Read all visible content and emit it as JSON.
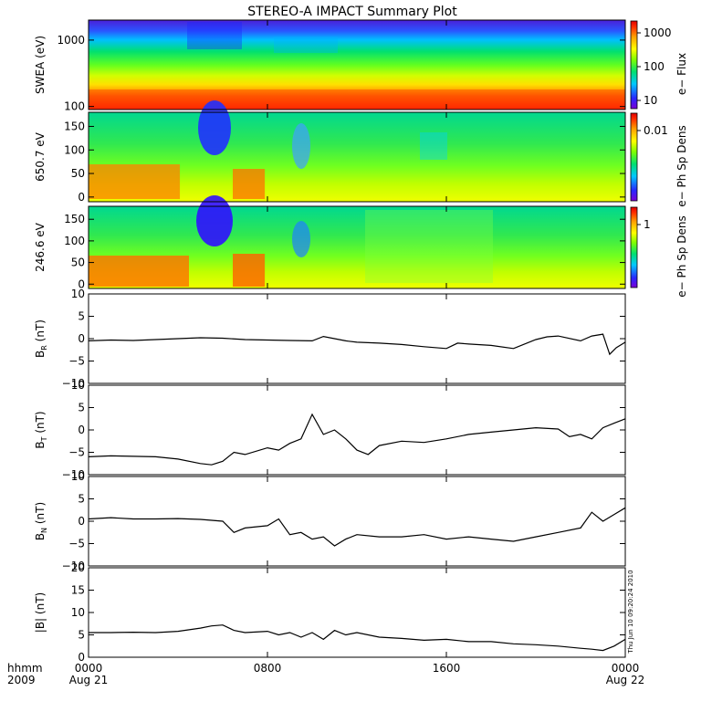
{
  "title": "STEREO-A IMPACT Summary Plot",
  "timestamp": "Thu Jun 10 09:20:24 2010",
  "colors": {
    "axis": "#000000",
    "trace": "#000000",
    "background": "#ffffff"
  },
  "colorbar_palette": [
    "#7b00d6",
    "#2828ff",
    "#00c8ff",
    "#00e070",
    "#80ff00",
    "#ffff00",
    "#ffa000",
    "#ff3000",
    "#e00000"
  ],
  "time_axis": {
    "range": [
      0,
      24
    ],
    "ticks": [
      0,
      8,
      16,
      24
    ],
    "time_labels": [
      "0000",
      "0800",
      "1600",
      "0000"
    ],
    "date_labels": [
      "Aug 21",
      "",
      "",
      "Aug 22"
    ],
    "row1_caption": "hhmm",
    "row2_caption": "2009"
  },
  "chart_data": [
    {
      "type": "heatmap",
      "ylabel": "SWEA (eV)",
      "yscale": "log",
      "ylim": [
        90,
        2000
      ],
      "yticks": [
        100,
        1000
      ],
      "ytick_labels": [
        "100",
        "1000"
      ],
      "colorbar": {
        "label": "e− Flux",
        "scale": "log",
        "ticks": [
          10,
          100,
          1000
        ],
        "tick_labels": [
          "10",
          "100",
          "1000"
        ]
      }
    },
    {
      "type": "heatmap",
      "ylabel": "650.7 eV",
      "ylim": [
        -10,
        180
      ],
      "yticks": [
        0,
        50,
        100,
        150
      ],
      "ytick_labels": [
        "0",
        "50",
        "100",
        "150"
      ],
      "colorbar": {
        "label": "e− Ph Sp Dens",
        "scale": "log",
        "ticks": [
          0.01
        ],
        "tick_labels": [
          "0.01"
        ]
      }
    },
    {
      "type": "heatmap",
      "ylabel": "246.6 eV",
      "ylim": [
        -10,
        180
      ],
      "yticks": [
        0,
        50,
        100,
        150
      ],
      "ytick_labels": [
        "0",
        "50",
        "100",
        "150"
      ],
      "colorbar": {
        "label": "e− Ph Sp Dens",
        "scale": "log",
        "ticks": [
          1
        ],
        "tick_labels": [
          "1"
        ]
      }
    },
    {
      "type": "line",
      "ylabel": "B",
      "ylabel_sub": "R",
      "ylabel_unit": " (nT)",
      "ylim": [
        -10,
        10
      ],
      "yticks": [
        -10,
        -5,
        0,
        5,
        10
      ],
      "ytick_labels": [
        "−10",
        "−5",
        "0",
        "5",
        "10"
      ],
      "x": [
        0,
        1,
        2,
        3,
        4,
        5,
        6,
        7,
        8,
        9,
        10,
        10.5,
        11,
        11.5,
        12,
        13,
        14,
        15,
        16,
        16.5,
        17,
        18,
        19,
        20,
        20.5,
        21,
        22,
        22.5,
        23,
        23.3,
        23.6,
        24
      ],
      "y": [
        -0.5,
        -0.3,
        -0.4,
        -0.2,
        0.0,
        0.2,
        0.1,
        -0.2,
        -0.3,
        -0.4,
        -0.5,
        0.5,
        0.0,
        -0.5,
        -0.8,
        -1.0,
        -1.3,
        -1.8,
        -2.2,
        -1.0,
        -1.2,
        -1.5,
        -2.2,
        -0.2,
        0.4,
        0.6,
        -0.5,
        0.6,
        1.0,
        -3.5,
        -2.0,
        -0.8
      ]
    },
    {
      "type": "line",
      "ylabel": "B",
      "ylabel_sub": "T",
      "ylabel_unit": " (nT)",
      "ylim": [
        -10,
        10
      ],
      "yticks": [
        -10,
        -5,
        0,
        5,
        10
      ],
      "ytick_labels": [
        "−10",
        "−5",
        "0",
        "5",
        "10"
      ],
      "x": [
        0,
        1,
        2,
        3,
        4,
        5,
        5.5,
        6,
        6.5,
        7,
        8,
        8.5,
        9,
        9.5,
        10,
        10.5,
        11,
        11.5,
        12,
        12.5,
        13,
        14,
        15,
        16,
        17,
        18,
        19,
        20,
        21,
        21.5,
        22,
        22.5,
        23,
        23.5,
        24
      ],
      "y": [
        -6.0,
        -5.8,
        -5.9,
        -6.0,
        -6.5,
        -7.5,
        -7.8,
        -7.0,
        -5.0,
        -5.5,
        -4.0,
        -4.5,
        -3.0,
        -2.0,
        3.5,
        -1.0,
        0.0,
        -2.0,
        -4.5,
        -5.5,
        -3.5,
        -2.5,
        -2.8,
        -2.0,
        -1.0,
        -0.5,
        0.0,
        0.5,
        0.2,
        -1.5,
        -1.0,
        -2.0,
        0.5,
        1.5,
        2.5
      ]
    },
    {
      "type": "line",
      "ylabel": "B",
      "ylabel_sub": "N",
      "ylabel_unit": " (nT)",
      "ylim": [
        -10,
        10
      ],
      "yticks": [
        -10,
        -5,
        0,
        5,
        10
      ],
      "ytick_labels": [
        "−10",
        "−5",
        "0",
        "5",
        "10"
      ],
      "x": [
        0,
        1,
        2,
        3,
        4,
        5,
        6,
        6.5,
        7,
        8,
        8.5,
        9,
        9.5,
        10,
        10.5,
        11,
        11.5,
        12,
        13,
        14,
        15,
        16,
        17,
        18,
        19,
        20,
        21,
        22,
        22.5,
        23,
        23.5,
        24
      ],
      "y": [
        0.5,
        0.8,
        0.5,
        0.5,
        0.6,
        0.4,
        0.0,
        -2.5,
        -1.5,
        -1.0,
        0.5,
        -3.0,
        -2.5,
        -4.0,
        -3.5,
        -5.5,
        -4.0,
        -3.0,
        -3.5,
        -3.5,
        -3.0,
        -4.0,
        -3.5,
        -4.0,
        -4.5,
        -3.5,
        -2.5,
        -1.5,
        2.0,
        0.0,
        1.5,
        3.0
      ]
    },
    {
      "type": "line",
      "ylabel": "|B| (nT)",
      "ylim": [
        0,
        20
      ],
      "yticks": [
        0,
        5,
        10,
        15,
        20
      ],
      "ytick_labels": [
        "0",
        "5",
        "10",
        "15",
        "20"
      ],
      "x": [
        0,
        1,
        2,
        3,
        4,
        5,
        5.5,
        6,
        6.5,
        7,
        8,
        8.5,
        9,
        9.5,
        10,
        10.5,
        11,
        11.5,
        12,
        13,
        14,
        15,
        16,
        17,
        18,
        19,
        20,
        21,
        22,
        22.5,
        23,
        23.5,
        24
      ],
      "y": [
        5.5,
        5.5,
        5.6,
        5.5,
        5.8,
        6.5,
        7.0,
        7.2,
        6.0,
        5.5,
        5.8,
        5.0,
        5.5,
        4.5,
        5.5,
        4.0,
        6.0,
        5.0,
        5.5,
        4.5,
        4.2,
        3.8,
        4.0,
        3.5,
        3.5,
        3.0,
        2.8,
        2.5,
        2.0,
        1.8,
        1.5,
        2.5,
        4.0
      ]
    }
  ]
}
